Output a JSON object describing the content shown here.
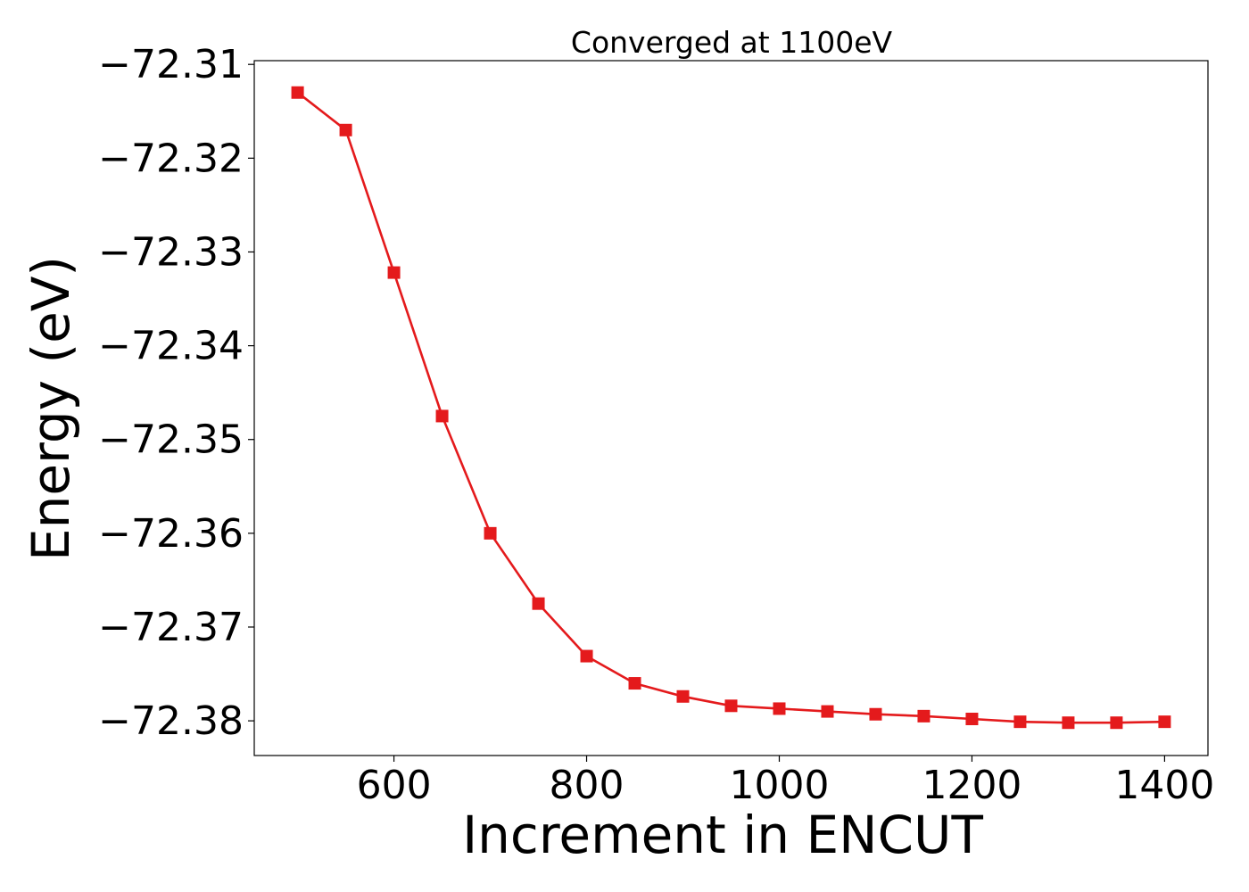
{
  "chart_data": {
    "type": "line",
    "title": "Converged at 1100eV",
    "xlabel": "Increment in ENCUT",
    "ylabel": "Energy (eV)",
    "xlim": [
      455,
      1445
    ],
    "ylim": [
      -72.3837,
      -72.3096
    ],
    "xticks": [
      600,
      800,
      1000,
      1200,
      1400
    ],
    "xtick_labels": [
      "600",
      "800",
      "1000",
      "1200",
      "1400"
    ],
    "yticks": [
      -72.31,
      -72.32,
      -72.33,
      -72.34,
      -72.35,
      -72.36,
      -72.37,
      -72.38
    ],
    "ytick_labels": [
      "−72.31",
      "−72.32",
      "−72.33",
      "−72.34",
      "−72.35",
      "−72.36",
      "−72.37",
      "−72.38"
    ],
    "grid": false,
    "series": [
      {
        "color": "#e41a1c",
        "marker": "square",
        "x": [
          500,
          550,
          600,
          650,
          700,
          750,
          800,
          850,
          900,
          950,
          1000,
          1050,
          1100,
          1150,
          1200,
          1250,
          1300,
          1350,
          1400
        ],
        "y": [
          -72.313,
          -72.317,
          -72.3322,
          -72.3475,
          -72.36,
          -72.3675,
          -72.3731,
          -72.376,
          -72.3774,
          -72.3784,
          -72.3787,
          -72.379,
          -72.3793,
          -72.3795,
          -72.3798,
          -72.3801,
          -72.3802,
          -72.3802,
          -72.3801
        ]
      }
    ]
  }
}
